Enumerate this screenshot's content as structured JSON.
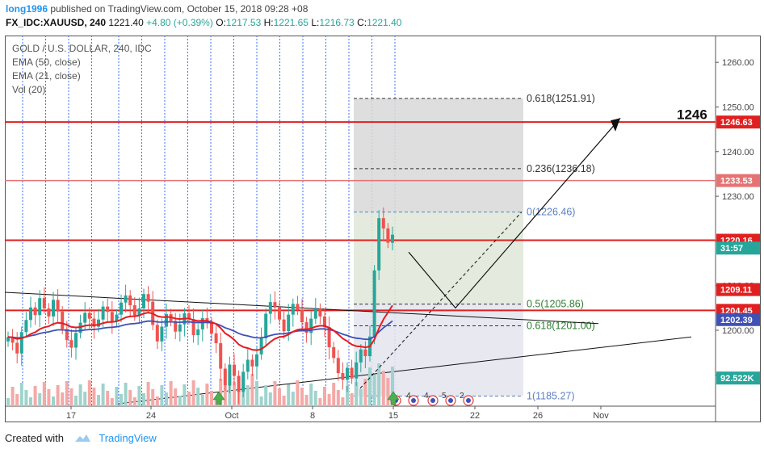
{
  "header": {
    "author": "long1996",
    "published_text": "published on TradingView.com, October 15, 2018 09:28 +08",
    "symbol": "FX_IDC:XAUUSD, 240",
    "last": "1221.40",
    "change": "+4.80 (+0.39%)",
    "o_label": "O:",
    "o": "1217.53",
    "h_label": "H:",
    "h": "1221.65",
    "l_label": "L:",
    "l": "1216.73",
    "c_label": "C:",
    "c": "1221.40"
  },
  "legend": {
    "title": "GOLD / U.S. DOLLAR, 240, IDC",
    "ema50": "EMA (50, close)",
    "ema21": "EMA (21, close)",
    "vol": "Vol (20)"
  },
  "footer": {
    "created_with": "Created with",
    "brand": "TradingView"
  },
  "colors": {
    "up": "#26a69a",
    "down": "#ef5350",
    "ema21": "#e51c23",
    "ema50": "#3f51b5",
    "hline": "#e02020",
    "fib": "#333333",
    "fib_blue": "#5b7fc2",
    "vgrid": "#2962ff"
  },
  "chart_data": {
    "type": "candlestick",
    "x_ticks": [
      "17",
      "24",
      "Oct",
      "8",
      "15",
      "22",
      "26",
      "Nov"
    ],
    "y_ticks": [
      1190,
      1200,
      1210,
      1220,
      1230,
      1240,
      1250,
      1260
    ],
    "y_tick_labels": [
      "1190.00",
      "1200.00",
      "1210.00",
      "1220.00",
      "1230.00",
      "1240.00",
      "1250.00",
      "1260.00"
    ],
    "ylim": [
      1183,
      1266
    ],
    "price_tags": [
      {
        "label": "1246.63",
        "value": 1246.63,
        "color": "#e02020"
      },
      {
        "label": "1233.53",
        "value": 1233.53,
        "color": "#e57373"
      },
      {
        "label": "1220.16",
        "value": 1220.16,
        "color": "#e02020"
      },
      {
        "label": "31:57",
        "value": 1218.4,
        "color": "#26a69a"
      },
      {
        "label": "1209.11",
        "value": 1209.11,
        "color": "#e02020"
      },
      {
        "label": "1204.45",
        "value": 1204.45,
        "color": "#e02020"
      },
      {
        "label": "1202.39",
        "value": 1202.39,
        "color": "#3f51b5"
      },
      {
        "label": "92.522K",
        "value": 1189.3,
        "color": "#26a69a"
      }
    ],
    "horizontal_levels": [
      1246.63,
      1233.53,
      1220.16,
      1204.45
    ],
    "fib_levels": [
      {
        "label": "0.618(1251.91)",
        "value": 1251.91
      },
      {
        "label": "0.236(1236.18)",
        "value": 1236.18
      },
      {
        "label": "0(1226.46)",
        "value": 1226.46
      },
      {
        "label": "0.5(1205.86)",
        "value": 1205.86
      },
      {
        "label": "0.618(1201.00)",
        "value": 1201.0
      },
      {
        "label": "1(1185.27)",
        "value": 1185.27
      }
    ],
    "target_label": "1246",
    "event_labels": [
      "4",
      "4",
      "5",
      "2"
    ],
    "closes": [
      1198.5,
      1197.2,
      1194.8,
      1199.6,
      1202.3,
      1205.1,
      1203.4,
      1207.2,
      1204.9,
      1203.1,
      1206.8,
      1204.2,
      1200.3,
      1197.8,
      1196.1,
      1199.4,
      1201.7,
      1203.9,
      1202.6,
      1200.8,
      1202.4,
      1205.3,
      1204.1,
      1201.9,
      1203.5,
      1206.2,
      1207.8,
      1205.6,
      1203.3,
      1204.9,
      1208.1,
      1206.4,
      1201.2,
      1197.5,
      1200.8,
      1203.6,
      1202.1,
      1199.7,
      1201.3,
      1203.8,
      1202.5,
      1198.9,
      1200.2,
      1202.7,
      1201.6,
      1199.3,
      1197.1,
      1191.4,
      1187.6,
      1192.3,
      1189.8,
      1186.2,
      1190.7,
      1193.4,
      1191.9,
      1194.6,
      1198.2,
      1203.7,
      1206.3,
      1205.1,
      1202.4,
      1199.8,
      1203.5,
      1205.9,
      1204.6,
      1201.8,
      1199.4,
      1202.6,
      1204.8,
      1203.1,
      1200.7,
      1196.2,
      1193.8,
      1190.4,
      1188.9,
      1191.6,
      1189.2,
      1192.8,
      1195.7,
      1194.2,
      1198.6,
      1213.4,
      1225.1,
      1222.8,
      1219.6,
      1221.4
    ]
  }
}
